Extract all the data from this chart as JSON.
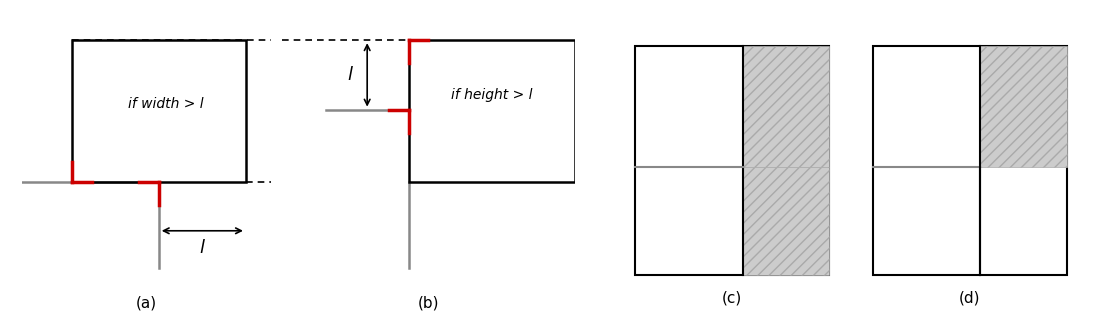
{
  "fig_width": 11.05,
  "fig_height": 3.28,
  "background": "#ffffff",
  "label_a": "(a)",
  "label_b": "(b)",
  "label_c": "(c)",
  "label_d": "(d)",
  "text_width": "if width > l",
  "text_height": "if height > l",
  "red_color": "#cc0000",
  "black_color": "#000000",
  "gray_color": "#888888",
  "light_gray": "#cccccc",
  "hatch_color": "#aaaaaa"
}
